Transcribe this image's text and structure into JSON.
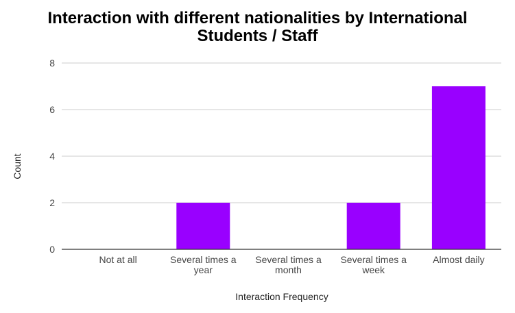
{
  "chart_data": {
    "type": "bar",
    "title_lines": [
      "Interaction with different nationalities by International",
      "Students / Staff"
    ],
    "categories": [
      [
        "Not at all"
      ],
      [
        "Several times a",
        "year"
      ],
      [
        "Several times a",
        "month"
      ],
      [
        "Several times a",
        "week"
      ],
      [
        "Almost daily"
      ]
    ],
    "values": [
      0,
      2,
      0,
      2,
      7
    ],
    "xlabel": "Interaction Frequency",
    "ylabel": "Count",
    "ylim": [
      0,
      8
    ],
    "yticks": [
      "0",
      "2",
      "4",
      "6",
      "8"
    ],
    "grid": true,
    "bar_color": "#9900ff",
    "grid_color": "#cccccc",
    "axis_color": "#333333"
  }
}
